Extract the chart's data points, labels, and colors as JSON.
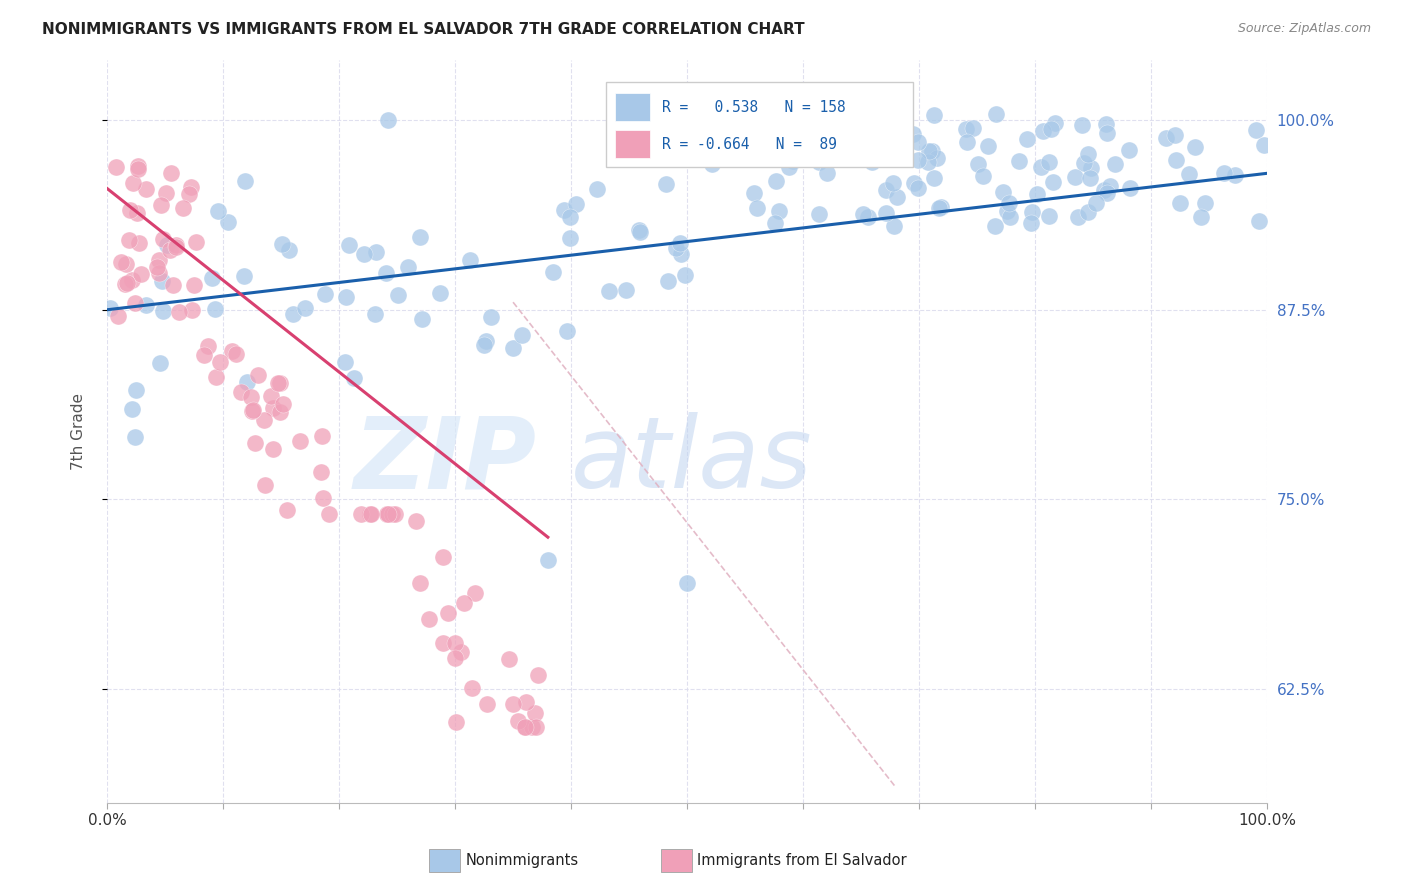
{
  "title": "NONIMMIGRANTS VS IMMIGRANTS FROM EL SALVADOR 7TH GRADE CORRELATION CHART",
  "source": "Source: ZipAtlas.com",
  "ylabel": "7th Grade",
  "right_yticks_labels": [
    "62.5%",
    "75.0%",
    "87.5%",
    "100.0%"
  ],
  "right_ytick_vals": [
    0.625,
    0.75,
    0.875,
    1.0
  ],
  "blue_color": "#A8C8E8",
  "pink_color": "#F0A0B8",
  "blue_line_color": "#1A5FAB",
  "pink_line_color": "#D84070",
  "diag_line_color": "#E0B0C0",
  "background_color": "#FFFFFF",
  "grid_color": "#DDDDEE",
  "xlim": [
    0.0,
    1.0
  ],
  "ylim": [
    0.55,
    1.04
  ],
  "blue_line_x": [
    0.0,
    1.0
  ],
  "blue_line_y": [
    0.875,
    0.965
  ],
  "pink_line_x": [
    0.0,
    0.38
  ],
  "pink_line_y": [
    0.955,
    0.725
  ],
  "diag_line_x": [
    0.35,
    0.68
  ],
  "diag_line_y": [
    0.88,
    0.56
  ],
  "legend_r_blue": "R =   0.538   N = 158",
  "legend_r_pink": "R = -0.664   N =  89",
  "watermark_zip": "ZIP",
  "watermark_atlas": "atlas"
}
